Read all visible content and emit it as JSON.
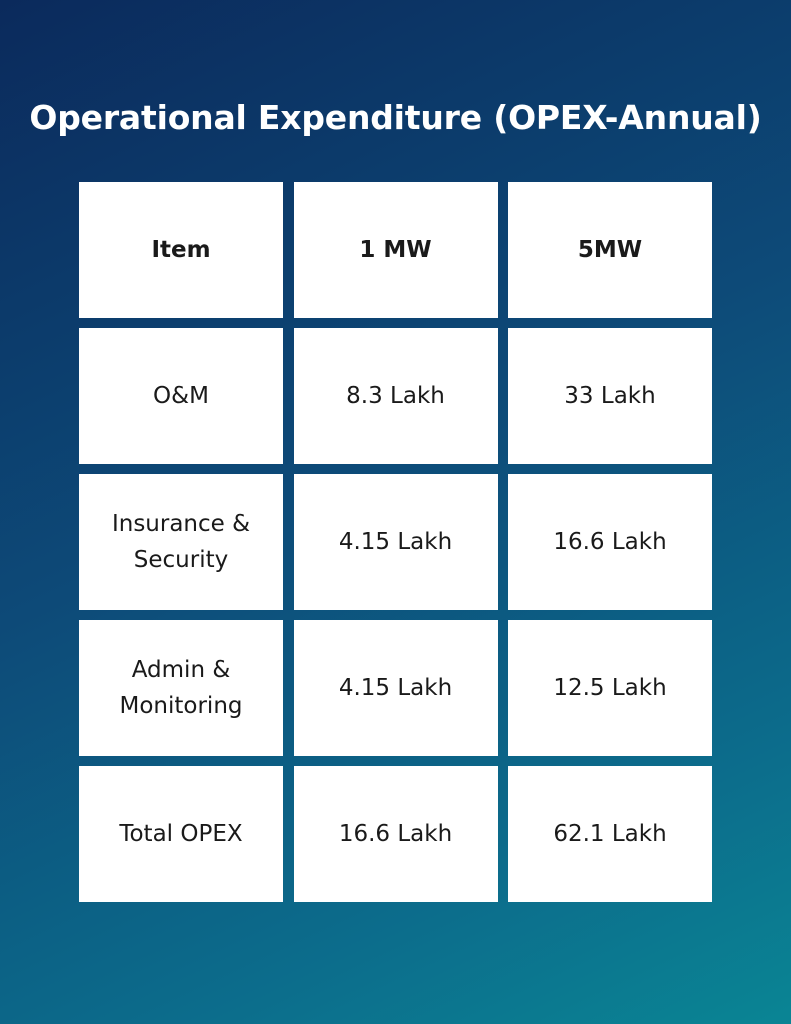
{
  "title": "Operational Expenditure (OPEX-Annual)",
  "chart_data": {
    "type": "table",
    "title": "Operational Expenditure (OPEX-Annual)",
    "columns": [
      "Item",
      "1 MW",
      "5MW"
    ],
    "rows": [
      [
        "O&M",
        "8.3 Lakh",
        "33 Lakh"
      ],
      [
        "Insurance & Security",
        "4.15 Lakh",
        "16.6 Lakh"
      ],
      [
        "Admin & Monitoring",
        "4.15 Lakh",
        "12.5 Lakh"
      ],
      [
        "Total OPEX",
        "16.6 Lakh",
        "62.1 Lakh"
      ]
    ]
  },
  "colors": {
    "background_start": "#0b2a5c",
    "background_end": "#0a8594",
    "cell_background": "#ffffff",
    "text": "#1a1a1a"
  }
}
